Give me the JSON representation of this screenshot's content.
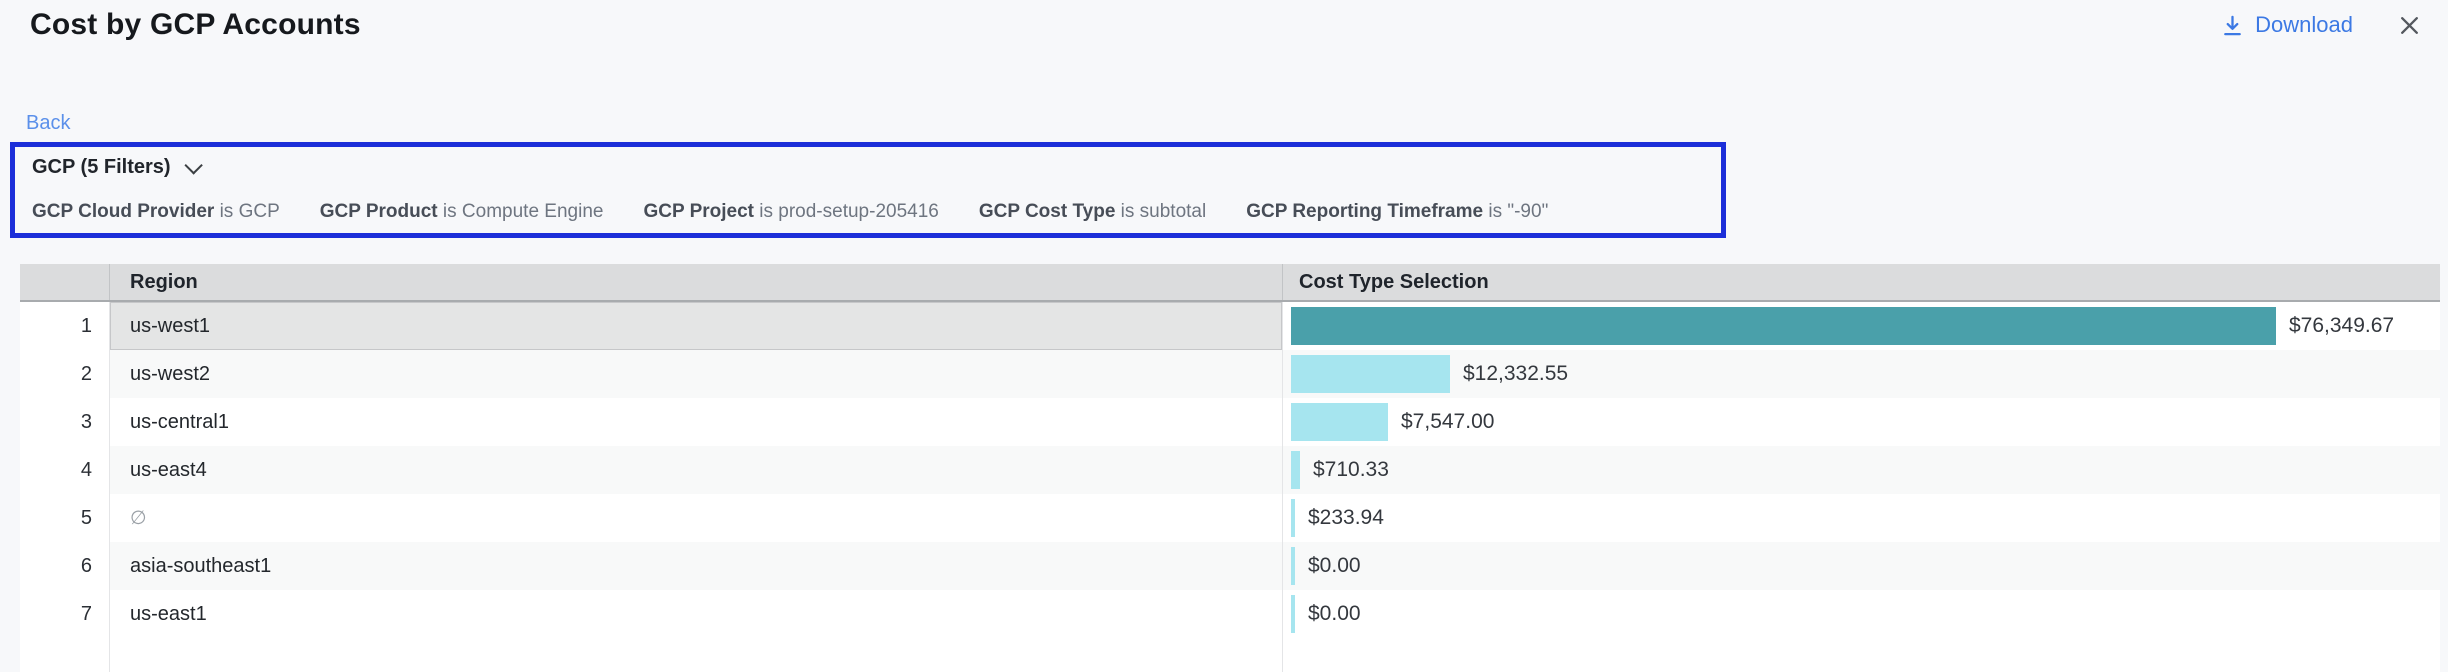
{
  "header": {
    "title": "Cost by GCP Accounts",
    "download_label": "Download"
  },
  "back_label": "Back",
  "filter_panel": {
    "summary_label": "GCP (5 Filters)",
    "filters": [
      {
        "field": "GCP Cloud Provider",
        "operator": "is",
        "value": "GCP"
      },
      {
        "field": "GCP Product",
        "operator": "is",
        "value": "Compute Engine"
      },
      {
        "field": "GCP Project",
        "operator": "is",
        "value": "prod-setup-205416"
      },
      {
        "field": "GCP Cost Type",
        "operator": "is",
        "value": "subtotal"
      },
      {
        "field": "GCP Reporting Timeframe",
        "operator": "is",
        "value": "\"-90\""
      }
    ],
    "annotation_border_color": "#1c2fd9"
  },
  "table": {
    "columns": [
      "Region",
      "Cost Type Selection"
    ],
    "rows": [
      {
        "index": 1,
        "region": "us-west1",
        "value": 76349.67,
        "value_label": "$76,349.67",
        "selected": true,
        "empty": false
      },
      {
        "index": 2,
        "region": "us-west2",
        "value": 12332.55,
        "value_label": "$12,332.55",
        "selected": false,
        "empty": false
      },
      {
        "index": 3,
        "region": "us-central1",
        "value": 7547.0,
        "value_label": "$7,547.00",
        "selected": false,
        "empty": false
      },
      {
        "index": 4,
        "region": "us-east4",
        "value": 710.33,
        "value_label": "$710.33",
        "selected": false,
        "empty": false
      },
      {
        "index": 5,
        "region": "∅",
        "value": 233.94,
        "value_label": "$233.94",
        "selected": false,
        "empty": true
      },
      {
        "index": 6,
        "region": "asia-southeast1",
        "value": 0.0,
        "value_label": "$0.00",
        "selected": false,
        "empty": false
      },
      {
        "index": 7,
        "region": "us-east1",
        "value": 0.0,
        "value_label": "$0.00",
        "selected": false,
        "empty": false
      }
    ]
  },
  "chart_data": {
    "type": "bar",
    "orientation": "horizontal",
    "title": "Cost by GCP Accounts",
    "series_label": "Cost Type Selection",
    "categories": [
      "us-west1",
      "us-west2",
      "us-central1",
      "us-east4",
      "∅",
      "asia-southeast1",
      "us-east1"
    ],
    "values": [
      76349.67,
      12332.55,
      7547.0,
      710.33,
      233.94,
      0.0,
      0.0
    ],
    "value_labels": [
      "$76,349.67",
      "$12,332.55",
      "$7,547.00",
      "$710.33",
      "$233.94",
      "$0.00",
      "$0.00"
    ],
    "xlim": [
      0,
      76349.67
    ],
    "grid": false,
    "colors": {
      "selected_bar": "#4aa0aa",
      "bar": "#a6e5ef"
    }
  },
  "colors": {
    "link_blue": "#3c79e4",
    "annotation_blue": "#1c2fd9",
    "bar_teal": "#4aa0aa",
    "bar_cyan": "#a6e5ef",
    "header_gray": "#dbdcdd"
  }
}
